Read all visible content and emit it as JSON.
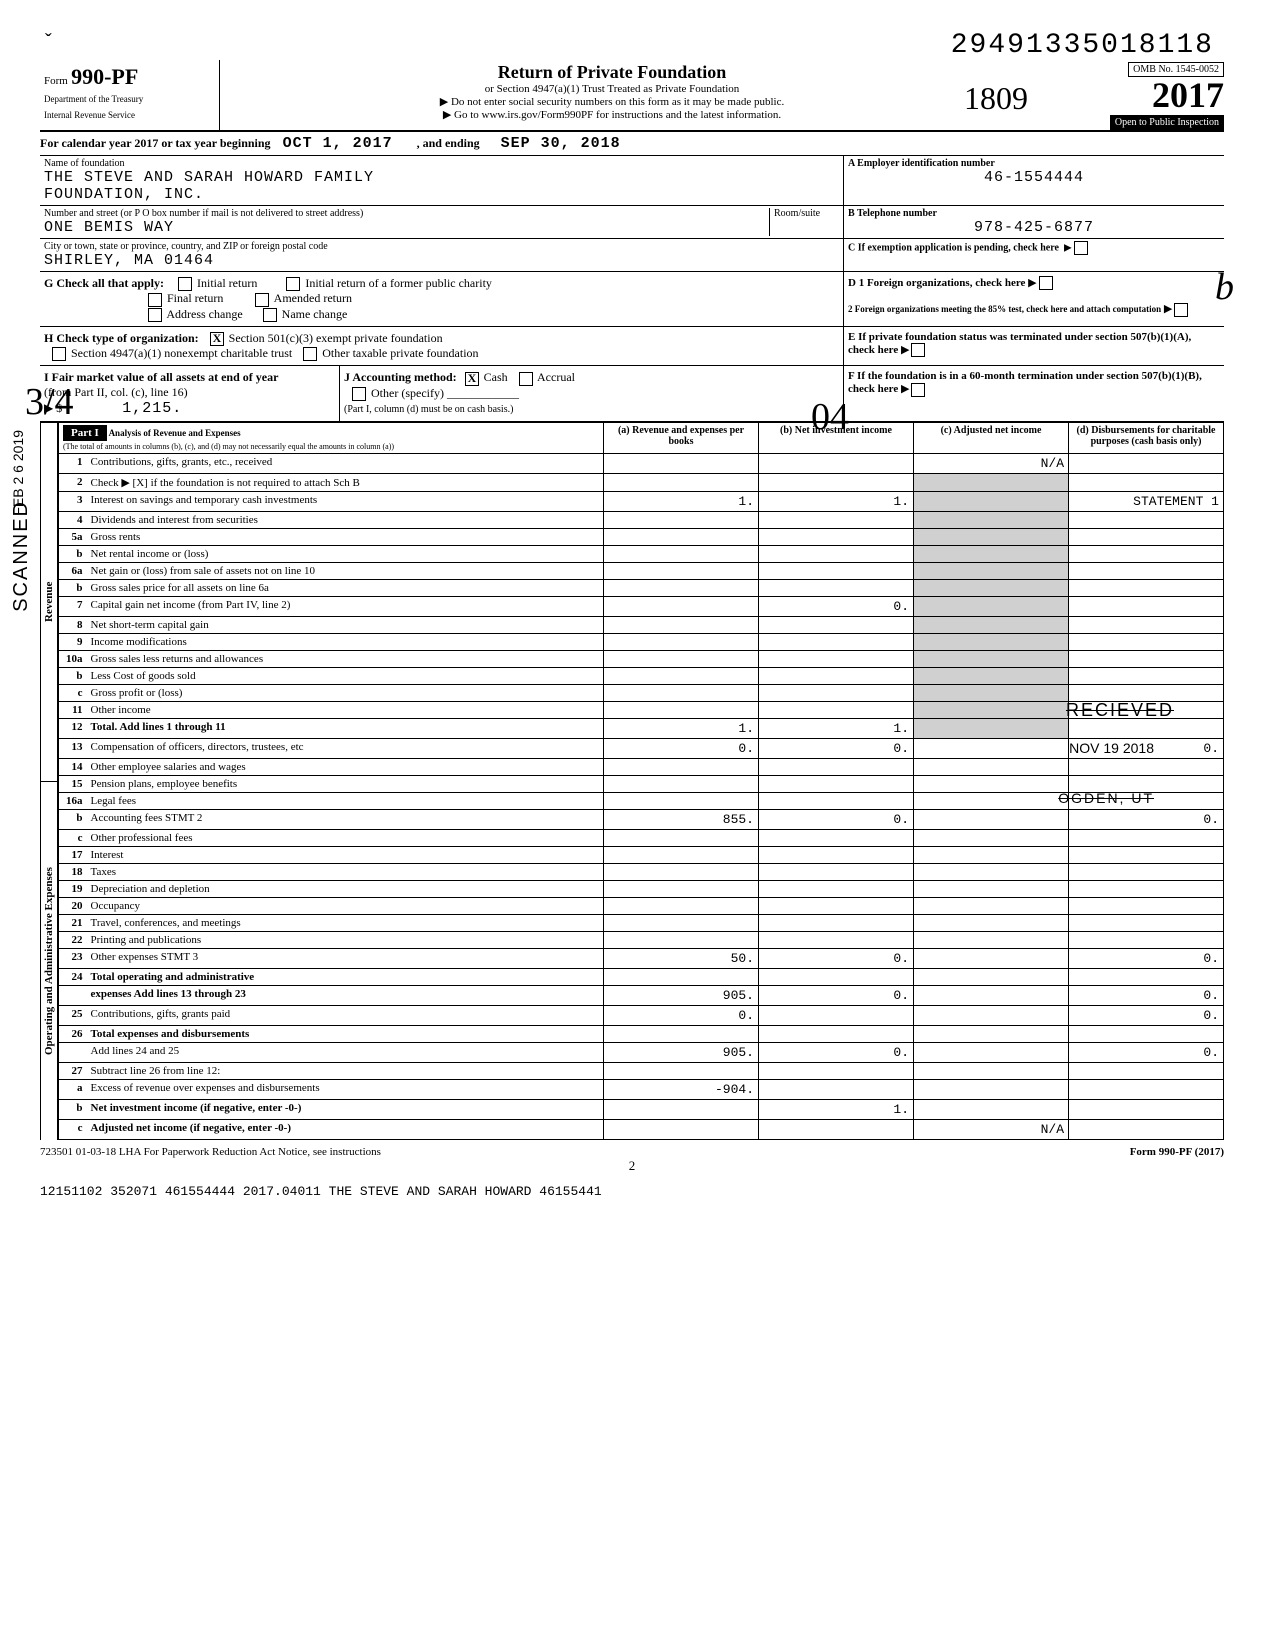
{
  "top_number": "29491335018118",
  "form": {
    "prefix": "Form",
    "number": "990-PF",
    "dept1": "Department of the Treasury",
    "dept2": "Internal Revenue Service"
  },
  "title": {
    "main": "Return of Private Foundation",
    "sub1": "or Section 4947(a)(1) Trust Treated as Private Foundation",
    "sub2": "▶ Do not enter social security numbers on this form as it may be made public.",
    "sub3": "▶ Go to www.irs.gov/Form990PF for instructions and the latest information."
  },
  "year_box": {
    "omb": "OMB No. 1545-0052",
    "year": "2017",
    "stamp": "1809",
    "open": "Open to Public Inspection"
  },
  "cal_year": {
    "prefix": "For calendar year 2017 or tax year beginning",
    "begin": "OCT 1, 2017",
    "mid": ", and ending",
    "end": "SEP 30, 2018"
  },
  "name": {
    "label": "Name of foundation",
    "value1": "THE STEVE AND SARAH HOWARD FAMILY",
    "value2": "FOUNDATION, INC."
  },
  "ein": {
    "label": "A Employer identification number",
    "value": "46-1554444"
  },
  "address": {
    "label": "Number and street (or P O box number if mail is not delivered to street address)",
    "room": "Room/suite",
    "value": "ONE BEMIS WAY"
  },
  "phone": {
    "label": "B Telephone number",
    "value": "978-425-6877"
  },
  "city": {
    "label": "City or town, state or province, country, and ZIP or foreign postal code",
    "value": "SHIRLEY, MA  01464"
  },
  "c_label": "C If exemption application is pending, check here",
  "g": {
    "label": "G  Check all that apply:",
    "opts": [
      "Initial return",
      "Final return",
      "Address change",
      "Initial return of a former public charity",
      "Amended return",
      "Name change"
    ]
  },
  "d": {
    "d1": "D 1  Foreign organizations, check here",
    "d2": "2  Foreign organizations meeting the 85% test, check here and attach computation"
  },
  "h": {
    "label": "H  Check type of organization:",
    "o1": "Section 501(c)(3) exempt private foundation",
    "o2": "Section 4947(a)(1) nonexempt charitable trust",
    "o3": "Other taxable private foundation"
  },
  "e": "E  If private foundation status was terminated under section 507(b)(1)(A), check here",
  "i": {
    "label": "I  Fair market value of all assets at end of year",
    "sub": "(from Part II, col. (c), line 16)",
    "arrow": "▶ $",
    "value": "1,215."
  },
  "j": {
    "label": "J  Accounting method:",
    "cash": "Cash",
    "accrual": "Accrual",
    "other": "Other (specify)",
    "note": "(Part I, column (d) must be on cash basis.)"
  },
  "f": "F  If the foundation is in a 60-month termination under section 507(b)(1)(B), check here",
  "part1": {
    "label": "Part I",
    "title": "Analysis of Revenue and Expenses",
    "sub": "(The total of amounts in columns (b), (c), and (d) may not necessarily equal the amounts in column (a))",
    "cols": [
      "(a) Revenue and expenses per books",
      "(b) Net investment income",
      "(c) Adjusted net income",
      "(d) Disbursements for charitable purposes (cash basis only)"
    ]
  },
  "rows": [
    {
      "n": "1",
      "d": "Contributions, gifts, grants, etc., received",
      "a": "",
      "b": "",
      "c": "N/A",
      "e": ""
    },
    {
      "n": "2",
      "d": "Check ▶ [X] if the foundation is not required to attach Sch B",
      "a": "",
      "b": "",
      "c": "",
      "e": ""
    },
    {
      "n": "3",
      "d": "Interest on savings and temporary cash investments",
      "a": "1.",
      "b": "1.",
      "c": "",
      "e": "STATEMENT 1"
    },
    {
      "n": "4",
      "d": "Dividends and interest from securities",
      "a": "",
      "b": "",
      "c": "",
      "e": ""
    },
    {
      "n": "5a",
      "d": "Gross rents",
      "a": "",
      "b": "",
      "c": "",
      "e": ""
    },
    {
      "n": "b",
      "d": "Net rental income or (loss)",
      "a": "",
      "b": "",
      "c": "",
      "e": ""
    },
    {
      "n": "6a",
      "d": "Net gain or (loss) from sale of assets not on line 10",
      "a": "",
      "b": "",
      "c": "",
      "e": ""
    },
    {
      "n": "b",
      "d": "Gross sales price for all assets on line 6a",
      "a": "",
      "b": "",
      "c": "",
      "e": ""
    },
    {
      "n": "7",
      "d": "Capital gain net income (from Part IV, line 2)",
      "a": "",
      "b": "0.",
      "c": "",
      "e": ""
    },
    {
      "n": "8",
      "d": "Net short-term capital gain",
      "a": "",
      "b": "",
      "c": "",
      "e": ""
    },
    {
      "n": "9",
      "d": "Income modifications",
      "a": "",
      "b": "",
      "c": "",
      "e": ""
    },
    {
      "n": "10a",
      "d": "Gross sales less returns and allowances",
      "a": "",
      "b": "",
      "c": "",
      "e": ""
    },
    {
      "n": "b",
      "d": "Less Cost of goods sold",
      "a": "",
      "b": "",
      "c": "",
      "e": ""
    },
    {
      "n": "c",
      "d": "Gross profit or (loss)",
      "a": "",
      "b": "",
      "c": "",
      "e": ""
    },
    {
      "n": "11",
      "d": "Other income",
      "a": "",
      "b": "",
      "c": "",
      "e": ""
    },
    {
      "n": "12",
      "d": "Total. Add lines 1 through 11",
      "a": "1.",
      "b": "1.",
      "c": "",
      "e": "",
      "bold": true
    },
    {
      "n": "13",
      "d": "Compensation of officers, directors, trustees, etc",
      "a": "0.",
      "b": "0.",
      "c": "",
      "e": "0."
    },
    {
      "n": "14",
      "d": "Other employee salaries and wages",
      "a": "",
      "b": "",
      "c": "",
      "e": ""
    },
    {
      "n": "15",
      "d": "Pension plans, employee benefits",
      "a": "",
      "b": "",
      "c": "",
      "e": ""
    },
    {
      "n": "16a",
      "d": "Legal fees",
      "a": "",
      "b": "",
      "c": "",
      "e": ""
    },
    {
      "n": "b",
      "d": "Accounting fees              STMT 2",
      "a": "855.",
      "b": "0.",
      "c": "",
      "e": "0."
    },
    {
      "n": "c",
      "d": "Other professional fees",
      "a": "",
      "b": "",
      "c": "",
      "e": ""
    },
    {
      "n": "17",
      "d": "Interest",
      "a": "",
      "b": "",
      "c": "",
      "e": ""
    },
    {
      "n": "18",
      "d": "Taxes",
      "a": "",
      "b": "",
      "c": "",
      "e": ""
    },
    {
      "n": "19",
      "d": "Depreciation and depletion",
      "a": "",
      "b": "",
      "c": "",
      "e": ""
    },
    {
      "n": "20",
      "d": "Occupancy",
      "a": "",
      "b": "",
      "c": "",
      "e": ""
    },
    {
      "n": "21",
      "d": "Travel, conferences, and meetings",
      "a": "",
      "b": "",
      "c": "",
      "e": ""
    },
    {
      "n": "22",
      "d": "Printing and publications",
      "a": "",
      "b": "",
      "c": "",
      "e": ""
    },
    {
      "n": "23",
      "d": "Other expenses               STMT 3",
      "a": "50.",
      "b": "0.",
      "c": "",
      "e": "0."
    },
    {
      "n": "24",
      "d": "Total operating and administrative",
      "a": "",
      "b": "",
      "c": "",
      "e": "",
      "bold": true
    },
    {
      "n": "",
      "d": "expenses  Add lines 13 through 23",
      "a": "905.",
      "b": "0.",
      "c": "",
      "e": "0.",
      "bold": true
    },
    {
      "n": "25",
      "d": "Contributions, gifts, grants paid",
      "a": "0.",
      "b": "",
      "c": "",
      "e": "0."
    },
    {
      "n": "26",
      "d": "Total expenses and disbursements",
      "a": "",
      "b": "",
      "c": "",
      "e": "",
      "bold": true
    },
    {
      "n": "",
      "d": "Add lines 24 and 25",
      "a": "905.",
      "b": "0.",
      "c": "",
      "e": "0."
    },
    {
      "n": "27",
      "d": "Subtract line 26 from line 12:",
      "a": "",
      "b": "",
      "c": "",
      "e": ""
    },
    {
      "n": "a",
      "d": "Excess of revenue over expenses and disbursements",
      "a": "-904.",
      "b": "",
      "c": "",
      "e": ""
    },
    {
      "n": "b",
      "d": "Net investment income (if negative, enter -0-)",
      "a": "",
      "b": "1.",
      "c": "",
      "e": "",
      "bold": true
    },
    {
      "n": "c",
      "d": "Adjusted net income (if negative, enter -0-)",
      "a": "",
      "b": "",
      "c": "N/A",
      "e": "",
      "bold": true
    }
  ],
  "side_labels": {
    "rev": "Revenue",
    "exp": "Operating and Administrative Expenses"
  },
  "footer": {
    "lha": "723501 01-03-18  LHA  For Paperwork Reduction Act Notice, see instructions",
    "form": "Form 990-PF (2017)",
    "page": "2",
    "bottom": "12151102 352071 461554444       2017.04011 THE STEVE AND SARAH HOWARD  46155441"
  },
  "stamps": {
    "scanned": "SCANNED",
    "date": "FEB 2 6 2019",
    "received": "RECIEVED",
    "recv_date": "NOV 19 2018",
    "ogden": "OGDEN, UT",
    "hw1": "3/4",
    "hw2": "04",
    "hw3": "b"
  }
}
